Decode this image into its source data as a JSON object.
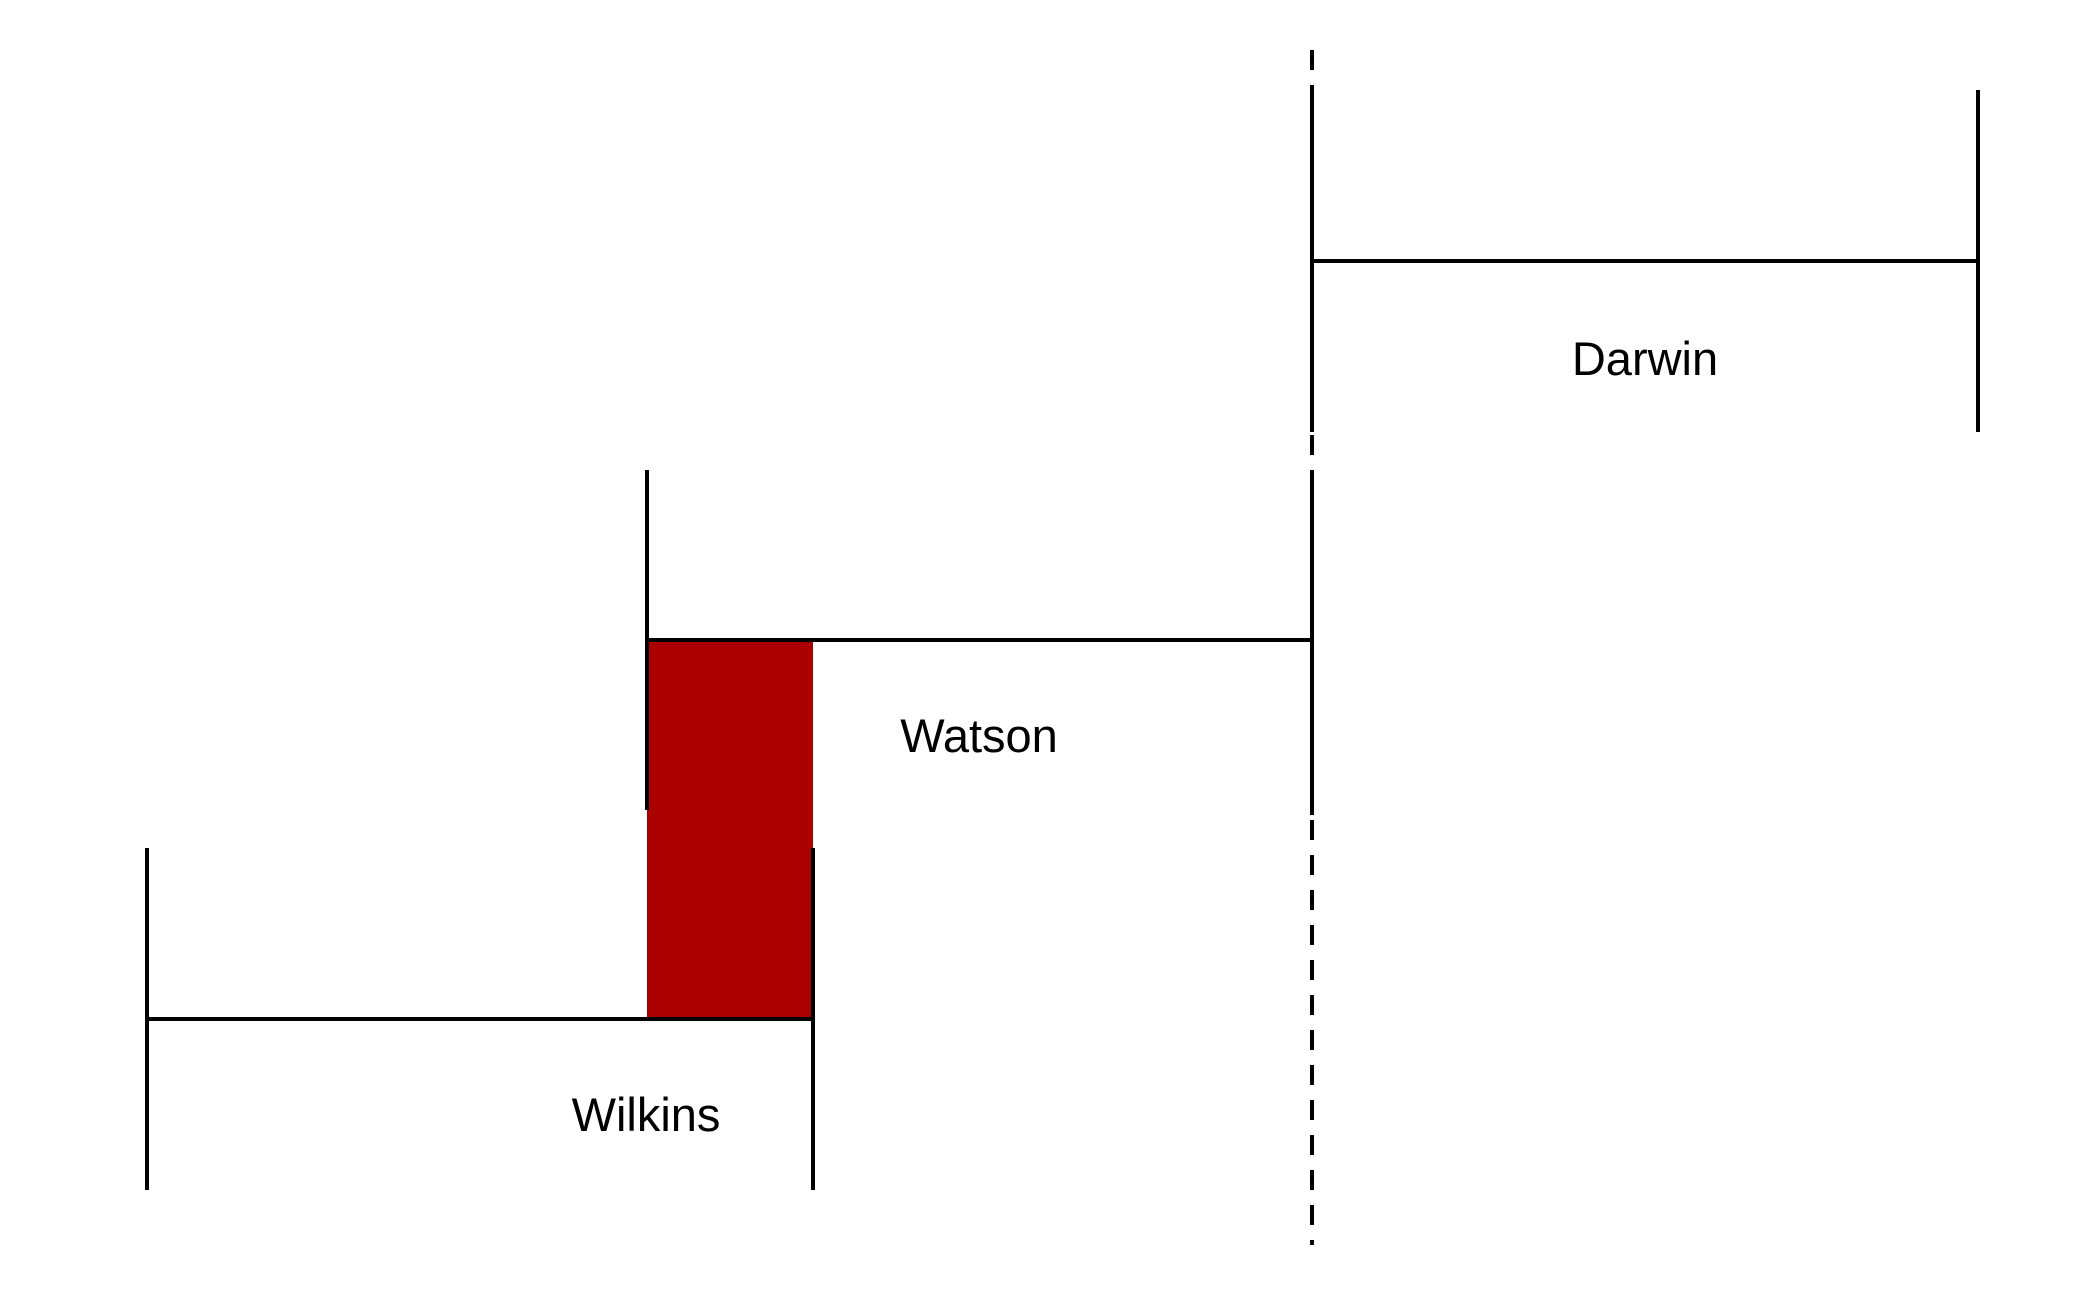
{
  "diagram": {
    "colors": {
      "line": "#000000",
      "overlap_fill": "#aa0000",
      "background": "#ffffff"
    },
    "bars": [
      {
        "label": "Darwin"
      },
      {
        "label": "Watson"
      },
      {
        "label": "Wilkins"
      }
    ],
    "highlight": {
      "between": [
        "Watson",
        "Wilkins"
      ],
      "kind": "overlap"
    },
    "reference_line": {
      "style": "dashed",
      "aligned_with": "Watson end / Darwin start"
    }
  }
}
